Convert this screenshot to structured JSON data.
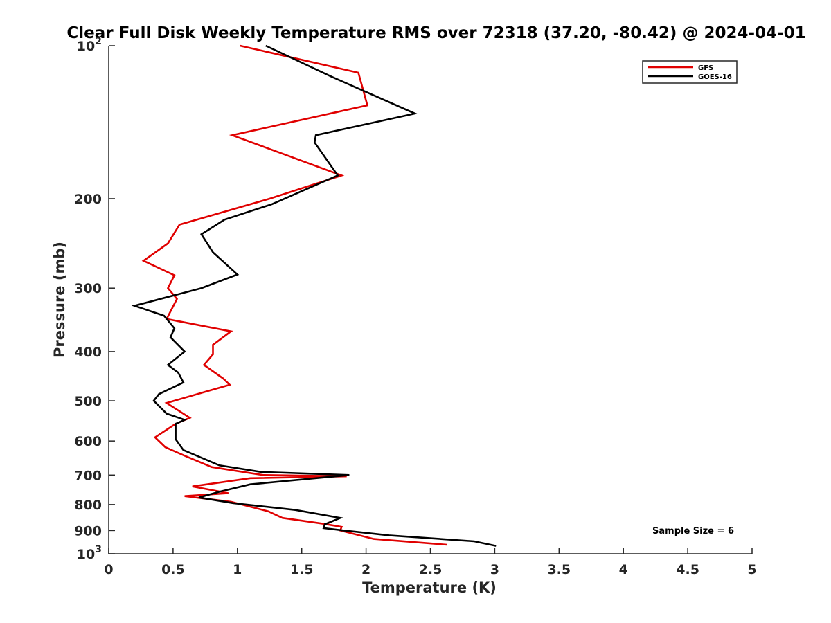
{
  "chart_data": {
    "type": "line",
    "title": "Clear Full Disk Weekly Temperature RMS over 72318 (37.20, -80.42) @ 2024-04-01",
    "xlabel": "Temperature (K)",
    "ylabel": "Pressure (mb)",
    "xlim": [
      0,
      5
    ],
    "ylim": [
      100,
      1000
    ],
    "yscale": "log",
    "y_reversed": true,
    "grid": false,
    "legend_position": "top-right",
    "xticks": [
      0,
      0.5,
      1,
      1.5,
      2,
      2.5,
      3,
      3.5,
      4,
      4.5,
      5
    ],
    "xtick_labels": [
      "0",
      "0.5",
      "1",
      "1.5",
      "2",
      "2.5",
      "3",
      "3.5",
      "4",
      "4.5",
      "5"
    ],
    "yticks": [
      100,
      200,
      300,
      400,
      500,
      600,
      700,
      800,
      900,
      1000
    ],
    "ytick_labels": [
      {
        "base": "10",
        "exp": "2"
      },
      {
        "base": "200",
        "exp": ""
      },
      {
        "base": "300",
        "exp": ""
      },
      {
        "base": "400",
        "exp": ""
      },
      {
        "base": "500",
        "exp": ""
      },
      {
        "base": "600",
        "exp": ""
      },
      {
        "base": "700",
        "exp": ""
      },
      {
        "base": "800",
        "exp": ""
      },
      {
        "base": "900",
        "exp": ""
      },
      {
        "base": "10",
        "exp": "3"
      }
    ],
    "annotation": "Sample Size = 6",
    "series": [
      {
        "name": "GFS",
        "color": "#e00000",
        "points": [
          [
            1.02,
            100
          ],
          [
            1.94,
            113
          ],
          [
            2.01,
            131
          ],
          [
            0.96,
            150
          ],
          [
            1.81,
            180
          ],
          [
            1.25,
            200
          ],
          [
            0.55,
            225
          ],
          [
            0.46,
            245
          ],
          [
            0.27,
            265
          ],
          [
            0.51,
            283
          ],
          [
            0.46,
            300
          ],
          [
            0.53,
            315
          ],
          [
            0.45,
            345
          ],
          [
            0.95,
            365
          ],
          [
            0.81,
            388
          ],
          [
            0.81,
            405
          ],
          [
            0.74,
            425
          ],
          [
            0.89,
            452
          ],
          [
            0.94,
            465
          ],
          [
            0.75,
            480
          ],
          [
            0.45,
            505
          ],
          [
            0.63,
            540
          ],
          [
            0.52,
            555
          ],
          [
            0.36,
            590
          ],
          [
            0.44,
            617
          ],
          [
            0.6,
            643
          ],
          [
            0.8,
            675
          ],
          [
            1.2,
            700
          ],
          [
            1.85,
            704
          ],
          [
            1.1,
            710
          ],
          [
            0.65,
            737
          ],
          [
            0.93,
            760
          ],
          [
            0.59,
            770
          ],
          [
            0.95,
            790
          ],
          [
            1.24,
            825
          ],
          [
            1.35,
            850
          ],
          [
            1.67,
            873
          ],
          [
            1.81,
            885
          ],
          [
            1.8,
            900
          ],
          [
            2.06,
            935
          ],
          [
            2.63,
            960
          ]
        ]
      },
      {
        "name": "GOES-16",
        "color": "#000000",
        "points": [
          [
            1.22,
            100
          ],
          [
            1.73,
            115
          ],
          [
            2.38,
            136
          ],
          [
            1.61,
            150
          ],
          [
            1.6,
            155
          ],
          [
            1.78,
            180
          ],
          [
            1.27,
            205
          ],
          [
            0.9,
            220
          ],
          [
            0.72,
            235
          ],
          [
            0.81,
            255
          ],
          [
            1.0,
            282
          ],
          [
            0.72,
            300
          ],
          [
            0.2,
            325
          ],
          [
            0.43,
            340
          ],
          [
            0.51,
            360
          ],
          [
            0.48,
            375
          ],
          [
            0.59,
            400
          ],
          [
            0.46,
            425
          ],
          [
            0.54,
            440
          ],
          [
            0.58,
            460
          ],
          [
            0.39,
            485
          ],
          [
            0.35,
            500
          ],
          [
            0.45,
            530
          ],
          [
            0.59,
            545
          ],
          [
            0.52,
            555
          ],
          [
            0.52,
            595
          ],
          [
            0.58,
            625
          ],
          [
            0.86,
            670
          ],
          [
            1.18,
            690
          ],
          [
            1.87,
            700
          ],
          [
            1.1,
            730
          ],
          [
            0.86,
            755
          ],
          [
            0.7,
            775
          ],
          [
            0.97,
            795
          ],
          [
            1.45,
            820
          ],
          [
            1.8,
            850
          ],
          [
            1.68,
            875
          ],
          [
            1.67,
            890
          ],
          [
            1.83,
            900
          ],
          [
            2.18,
            920
          ],
          [
            2.84,
            945
          ],
          [
            3.01,
            965
          ]
        ]
      }
    ]
  }
}
